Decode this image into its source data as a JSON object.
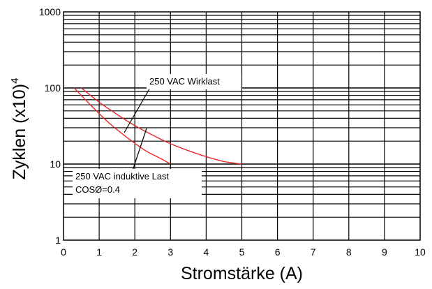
{
  "chart_data": {
    "type": "line",
    "xlabel": "Stromstärke (A)",
    "ylabel": "Zyklen (x10)",
    "ylabel_superscript": "4",
    "xlim": [
      0,
      10
    ],
    "ylim": [
      1,
      1000
    ],
    "yscale": "log",
    "grid": true,
    "x_ticks": [
      "0",
      "1",
      "2",
      "3",
      "4",
      "5",
      "6",
      "7",
      "8",
      "9",
      "10"
    ],
    "y_ticks": [
      "1",
      "10",
      "100",
      "1000"
    ],
    "series": [
      {
        "name": "250 VAC Wirklast",
        "color": "#e8262a",
        "points": [
          [
            0.5,
            100
          ],
          [
            1,
            65
          ],
          [
            1.5,
            45
          ],
          [
            2,
            32
          ],
          [
            2.5,
            24
          ],
          [
            3,
            18.5
          ],
          [
            3.5,
            15
          ],
          [
            4,
            12.5
          ],
          [
            4.5,
            10.8
          ],
          [
            5,
            10
          ]
        ]
      },
      {
        "name": "250 VAC induktive Last COSØ=0.4",
        "color": "#e8262a",
        "points": [
          [
            0.3,
            100
          ],
          [
            0.8,
            57
          ],
          [
            1.3,
            34
          ],
          [
            1.8,
            22
          ],
          [
            2.3,
            15
          ],
          [
            2.7,
            12
          ],
          [
            3,
            10
          ]
        ]
      }
    ],
    "annotations": [
      {
        "lines": [
          "250 VAC Wirklast"
        ],
        "series_index": 0
      },
      {
        "lines": [
          "250 VAC induktive Last",
          "COSØ=0.4"
        ],
        "series_index": 1
      }
    ]
  }
}
